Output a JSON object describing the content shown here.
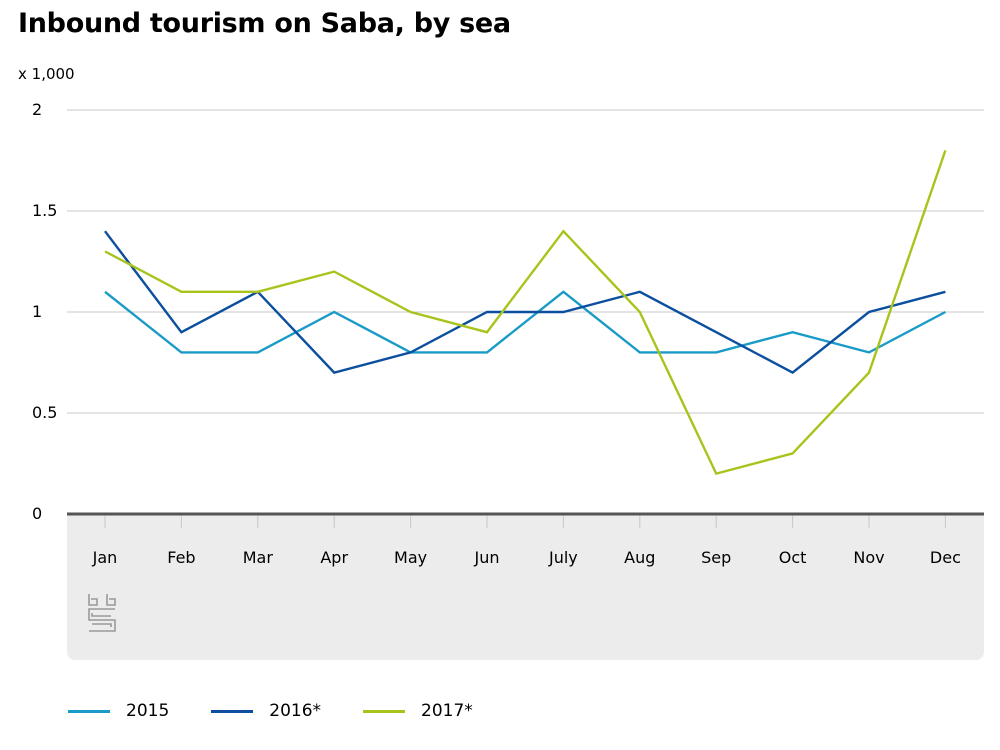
{
  "header": {
    "title": "Inbound tourism on Saba, by sea"
  },
  "logo": {
    "name": "cbs-logo",
    "text": "cbs"
  },
  "chart_data": {
    "type": "line",
    "title": "Inbound tourism on Saba, by sea",
    "unit_label": "x 1,000",
    "xlabel": "",
    "ylabel": "",
    "categories": [
      "Jan",
      "Feb",
      "Mar",
      "Apr",
      "May",
      "Jun",
      "July",
      "Aug",
      "Sep",
      "Oct",
      "Nov",
      "Dec"
    ],
    "ylim": [
      0,
      2
    ],
    "yticks": [
      0,
      0.5,
      1,
      1.5,
      2
    ],
    "ytick_labels": [
      "0",
      "0.5",
      "1",
      "1.5",
      "2"
    ],
    "grid": true,
    "legend_position": "bottom",
    "series": [
      {
        "name": "2015",
        "color": "#1a9bc7",
        "values": [
          1.1,
          0.8,
          0.8,
          1.0,
          0.8,
          0.8,
          1.1,
          0.8,
          0.8,
          0.9,
          0.8,
          1.0
        ]
      },
      {
        "name": "2016*",
        "color": "#0b4f9e",
        "values": [
          1.4,
          0.9,
          1.1,
          0.7,
          0.8,
          1.0,
          1.0,
          1.1,
          0.9,
          0.7,
          1.0,
          1.1
        ]
      },
      {
        "name": "2017*",
        "color": "#a8c41c",
        "values": [
          1.3,
          1.1,
          1.1,
          1.2,
          1.0,
          0.9,
          1.4,
          1.0,
          0.2,
          0.3,
          0.7,
          1.8
        ]
      }
    ]
  }
}
